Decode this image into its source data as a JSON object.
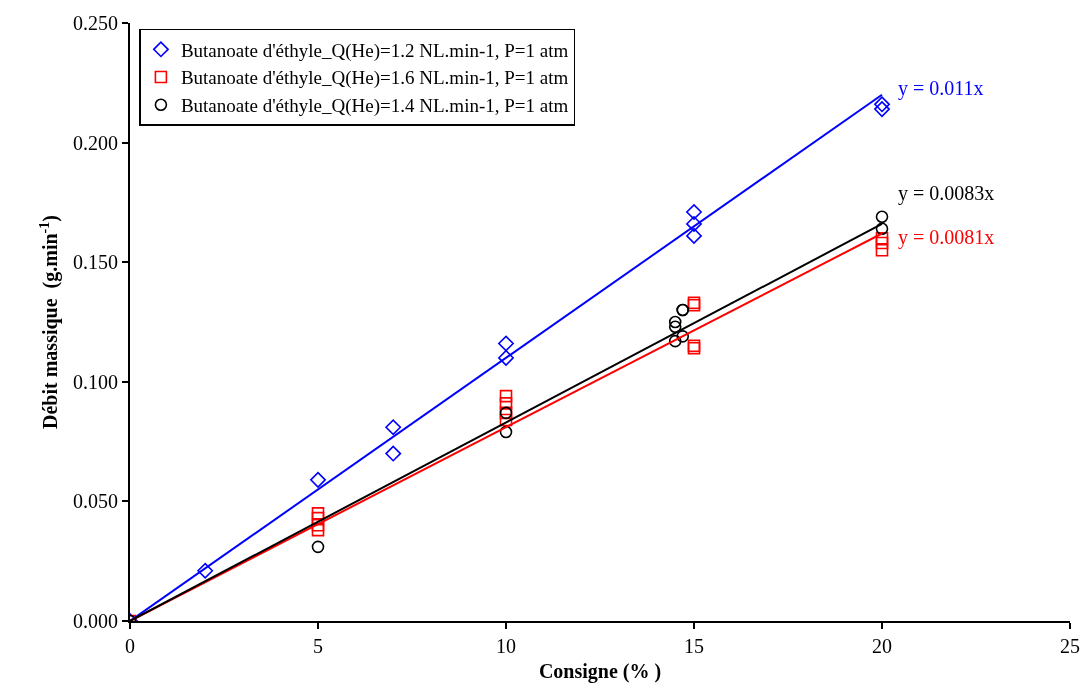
{
  "chart_data": {
    "type": "scatter",
    "xlabel": "Consigne (% )",
    "ylabel": "Débit massique  (g.min$^{-1}$)",
    "xlim": [
      0,
      25
    ],
    "xticks": [
      0,
      5,
      10,
      15,
      20,
      25
    ],
    "ylim": [
      0,
      0.25
    ],
    "yticks": [
      {
        "value": 0,
        "label": "0.000"
      },
      {
        "value": 0.05,
        "label": "0.050"
      },
      {
        "value": 0.1,
        "label": "0.100"
      },
      {
        "value": 0.15,
        "label": "0.150"
      },
      {
        "value": 0.2,
        "label": "0.200"
      },
      {
        "value": 0.25,
        "label": "0.250"
      }
    ],
    "legend": "top left",
    "series": [
      {
        "name": "Butanoate d'éthyle_Q(He)=1.2 NL.min-1, P=1 atm",
        "color": "#0000ff",
        "marker": "diamond",
        "x": [
          0,
          2,
          5,
          7,
          7,
          10,
          10,
          15,
          15,
          15,
          20,
          20
        ],
        "values": [
          0,
          0.021,
          0.059,
          0.081,
          0.07,
          0.116,
          0.11,
          0.171,
          0.166,
          0.161,
          0.216,
          0.214
        ]
      },
      {
        "name": "Butanoate d'éthyle_Q(He)=1.6 NL.min-1, P=1 atm",
        "color": "#ff0000",
        "marker": "square",
        "x": [
          0,
          5,
          5,
          5,
          5,
          10,
          10,
          10,
          10,
          15,
          15,
          15,
          15,
          20,
          20,
          20
        ],
        "values": [
          0,
          0.045,
          0.043,
          0.04,
          0.038,
          0.094,
          0.091,
          0.087,
          0.084,
          0.133,
          0.132,
          0.114,
          0.115,
          0.16,
          0.158,
          0.155
        ]
      },
      {
        "name": "Butanoate d'éthyle_Q(He)=1.4 NL.min-1, P=1 atm",
        "color": "#000000",
        "marker": "circle",
        "x": [
          0,
          5,
          10,
          10,
          14.5,
          14.5,
          14.5,
          14.7,
          14.7,
          14.7,
          20,
          20
        ],
        "values": [
          0,
          0.031,
          0.087,
          0.079,
          0.125,
          0.123,
          0.117,
          0.13,
          0.13,
          0.119,
          0.169,
          0.164
        ]
      },
      {
        "type": "line",
        "name": "y = 0.011x",
        "color": "#0000ff",
        "x": [
          0,
          20
        ],
        "values": [
          0,
          0.22
        ]
      },
      {
        "type": "line",
        "name": "y = 0.0081x",
        "color": "#ff0000",
        "x": [
          0,
          20
        ],
        "values": [
          0,
          0.162
        ]
      },
      {
        "type": "line",
        "name": "y = 0.0083x",
        "color": "#000000",
        "x": [
          0,
          20
        ],
        "values": [
          0,
          0.166
        ]
      }
    ]
  }
}
